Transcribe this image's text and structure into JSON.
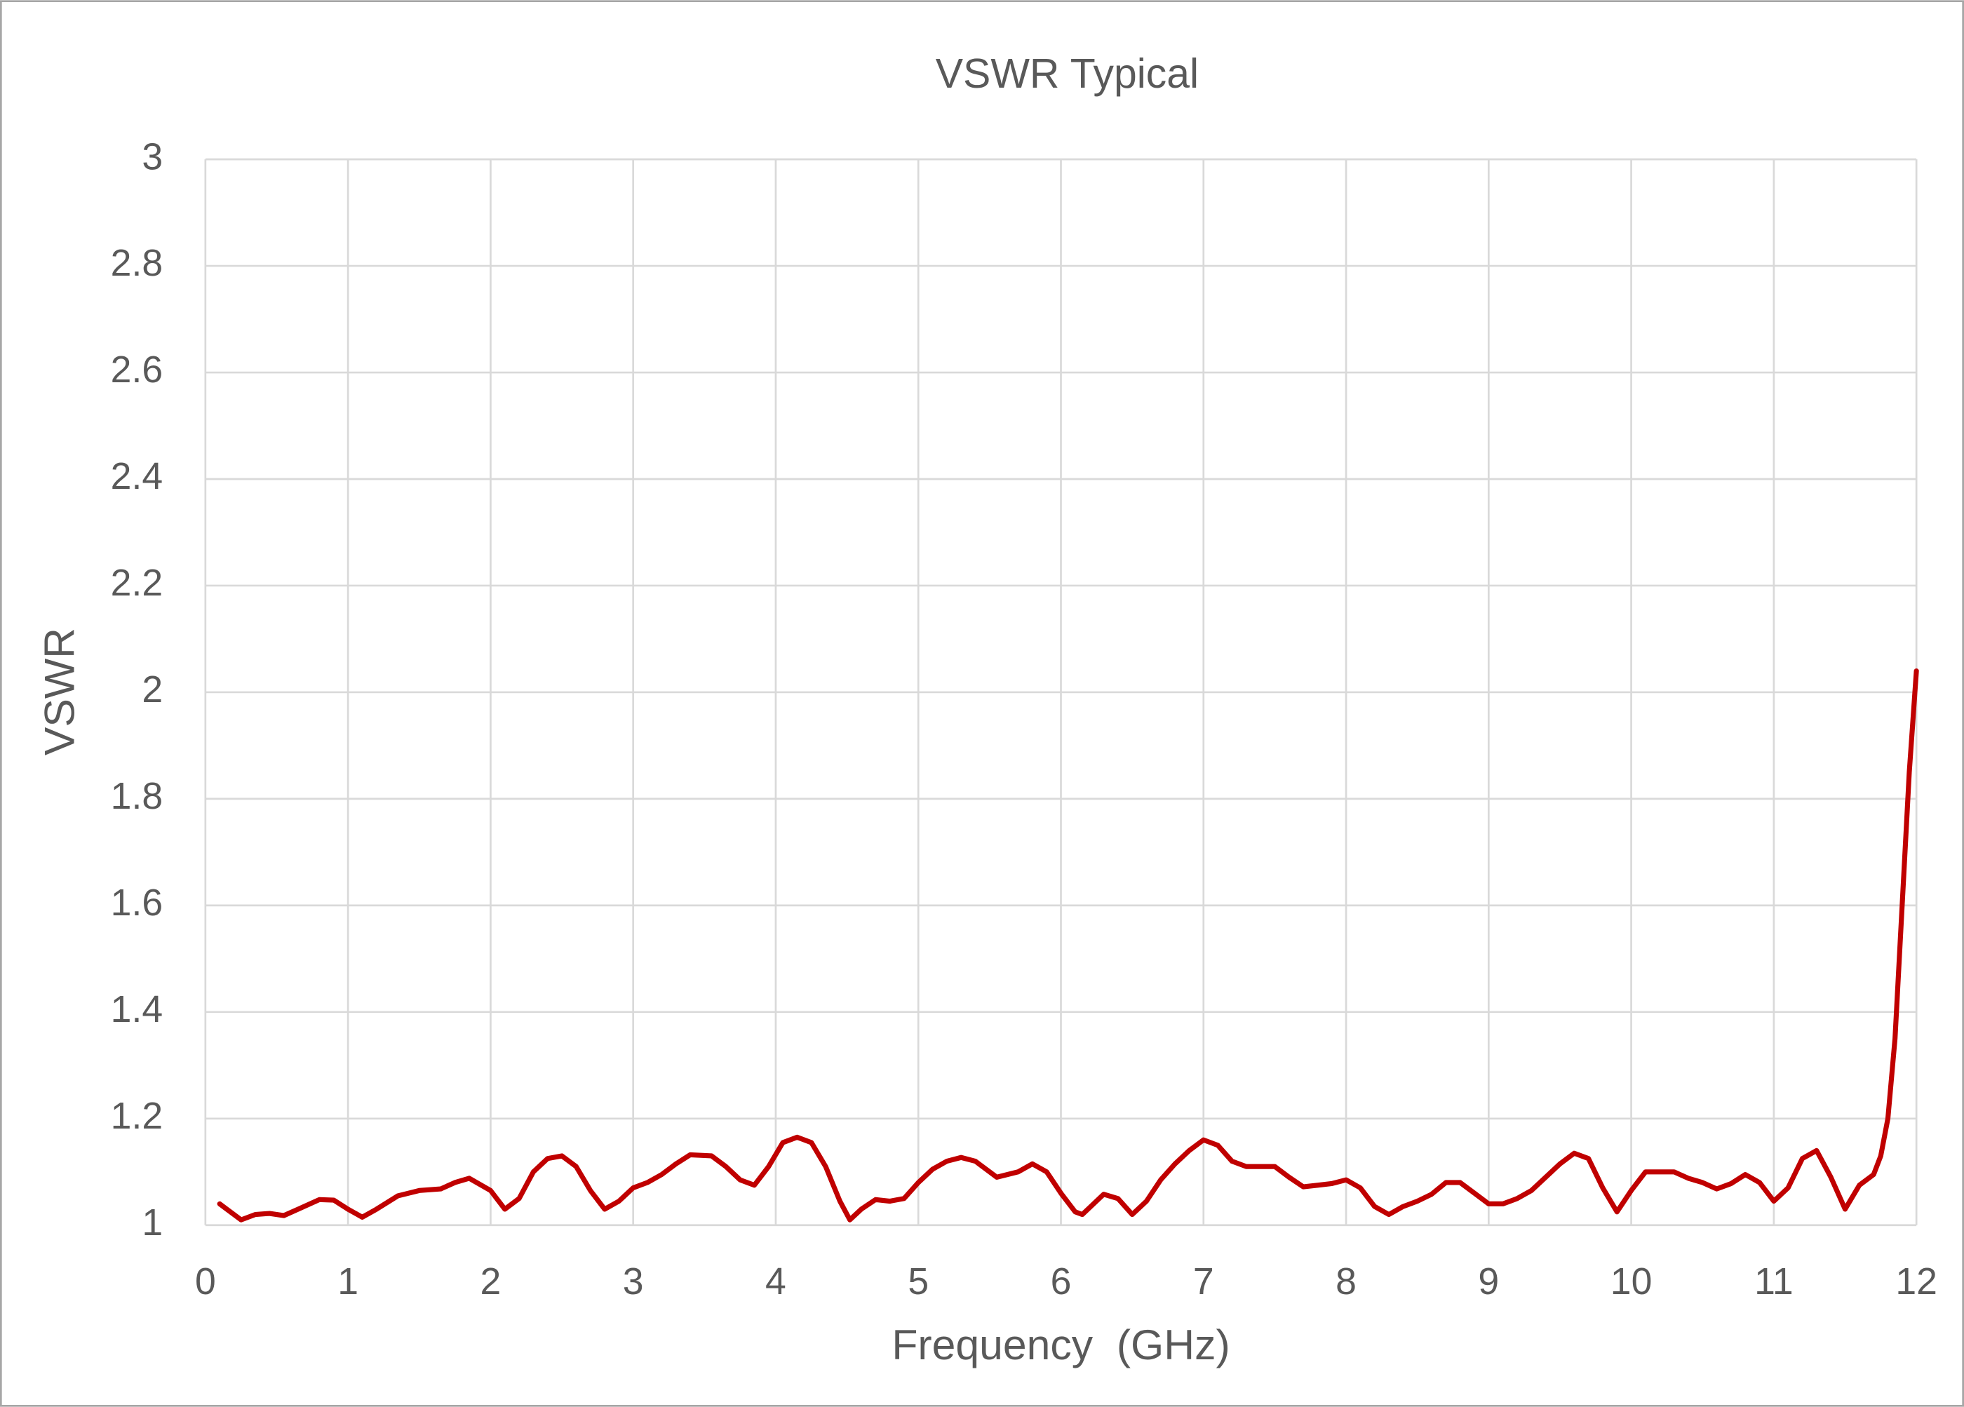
{
  "chart_data": {
    "type": "line",
    "title": "VSWR Typical",
    "x_label": "Frequency  (GHz)",
    "y_label": "VSWR",
    "xlim": [
      0,
      12
    ],
    "xticks": [
      0,
      1,
      2,
      3,
      4,
      5,
      6,
      7,
      8,
      9,
      10,
      11,
      12
    ],
    "ylim": [
      1,
      3
    ],
    "yticks": [
      1,
      1.2,
      1.4,
      1.6,
      1.8,
      2,
      2.2,
      2.4,
      2.6,
      2.8,
      3
    ],
    "grid": true,
    "x": [
      0.1,
      0.15,
      0.25,
      0.35,
      0.45,
      0.55,
      0.65,
      0.8,
      0.9,
      1.0,
      1.1,
      1.2,
      1.35,
      1.5,
      1.65,
      1.75,
      1.85,
      2.0,
      2.1,
      2.2,
      2.3,
      2.4,
      2.5,
      2.6,
      2.7,
      2.8,
      2.9,
      3.0,
      3.1,
      3.2,
      3.3,
      3.4,
      3.55,
      3.65,
      3.75,
      3.85,
      3.95,
      4.05,
      4.15,
      4.25,
      4.35,
      4.45,
      4.52,
      4.6,
      4.7,
      4.8,
      4.9,
      5.0,
      5.1,
      5.2,
      5.3,
      5.4,
      5.5,
      5.55,
      5.7,
      5.8,
      5.9,
      6.0,
      6.1,
      6.15,
      6.3,
      6.4,
      6.5,
      6.6,
      6.7,
      6.8,
      6.9,
      7.0,
      7.1,
      7.2,
      7.3,
      7.4,
      7.5,
      7.6,
      7.7,
      7.8,
      7.9,
      8.0,
      8.1,
      8.2,
      8.3,
      8.4,
      8.5,
      8.6,
      8.7,
      8.8,
      8.9,
      9.0,
      9.1,
      9.2,
      9.3,
      9.4,
      9.5,
      9.6,
      9.7,
      9.8,
      9.9,
      10.0,
      10.1,
      10.2,
      10.3,
      10.4,
      10.5,
      10.6,
      10.7,
      10.8,
      10.9,
      11.0,
      11.1,
      11.2,
      11.3,
      11.4,
      11.5,
      11.6,
      11.7,
      11.75,
      11.8,
      11.85,
      11.9,
      11.95,
      12.0
    ],
    "series": [
      {
        "name": "VSWR",
        "color": "#c00000",
        "values": [
          1.04,
          1.03,
          1.01,
          1.02,
          1.022,
          1.018,
          1.03,
          1.048,
          1.047,
          1.03,
          1.015,
          1.03,
          1.055,
          1.065,
          1.068,
          1.08,
          1.088,
          1.065,
          1.03,
          1.05,
          1.1,
          1.125,
          1.13,
          1.11,
          1.065,
          1.03,
          1.045,
          1.07,
          1.08,
          1.095,
          1.115,
          1.132,
          1.13,
          1.11,
          1.085,
          1.075,
          1.11,
          1.155,
          1.165,
          1.155,
          1.11,
          1.045,
          1.01,
          1.03,
          1.048,
          1.045,
          1.05,
          1.08,
          1.105,
          1.12,
          1.127,
          1.12,
          1.1,
          1.09,
          1.1,
          1.115,
          1.1,
          1.06,
          1.025,
          1.02,
          1.058,
          1.05,
          1.02,
          1.045,
          1.085,
          1.115,
          1.14,
          1.16,
          1.15,
          1.12,
          1.11,
          1.11,
          1.11,
          1.09,
          1.072,
          1.075,
          1.078,
          1.085,
          1.07,
          1.035,
          1.02,
          1.035,
          1.045,
          1.058,
          1.08,
          1.08,
          1.06,
          1.04,
          1.04,
          1.05,
          1.065,
          1.09,
          1.115,
          1.135,
          1.125,
          1.07,
          1.025,
          1.065,
          1.1,
          1.1,
          1.1,
          1.088,
          1.08,
          1.068,
          1.078,
          1.095,
          1.08,
          1.045,
          1.07,
          1.125,
          1.14,
          1.09,
          1.03,
          1.075,
          1.095,
          1.13,
          1.2,
          1.35,
          1.6,
          1.85,
          2.04
        ]
      }
    ]
  }
}
